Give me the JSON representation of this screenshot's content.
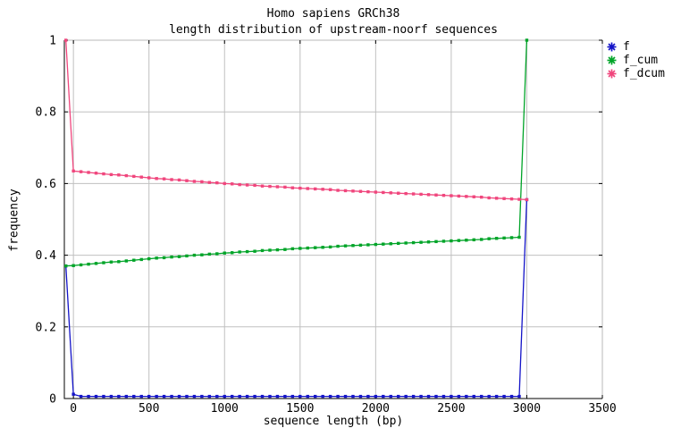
{
  "figure": {
    "title_line1": "Homo sapiens GRCh38",
    "title_line2": "length distribution of upstream-noorf sequences",
    "xlabel": "sequence length (bp)",
    "ylabel": "frequency"
  },
  "colors": {
    "background": "#ffffff",
    "grid": "#c0c0c0",
    "border_top_right": "#b8b8b8",
    "axis": "#000000",
    "text": "#000000"
  },
  "chart_data": {
    "type": "line",
    "title": "Homo sapiens GRCh38 — length distribution of upstream-noorf sequences",
    "xlabel": "sequence length (bp)",
    "ylabel": "frequency",
    "xlim": [
      -60,
      3500
    ],
    "ylim": [
      0,
      1
    ],
    "x_ticks": [
      0,
      500,
      1000,
      1500,
      2000,
      2500,
      3000,
      3500
    ],
    "x_tick_labels": [
      "0",
      "500",
      "1000",
      "1500",
      "2000",
      "2500",
      "3000",
      "3500"
    ],
    "y_ticks": [
      0,
      0.2,
      0.4,
      0.6,
      0.8,
      1
    ],
    "y_tick_labels": [
      "0",
      "0.2",
      "0.4",
      "0.6",
      "0.8",
      "1"
    ],
    "grid": true,
    "legend_position": "outside-top-right",
    "marker": "square-dot",
    "x": [
      -50,
      0,
      50,
      100,
      150,
      200,
      250,
      300,
      350,
      400,
      450,
      500,
      550,
      600,
      650,
      700,
      750,
      800,
      850,
      900,
      950,
      1000,
      1050,
      1100,
      1150,
      1200,
      1250,
      1300,
      1350,
      1400,
      1450,
      1500,
      1550,
      1600,
      1650,
      1700,
      1750,
      1800,
      1850,
      1900,
      1950,
      2000,
      2050,
      2100,
      2150,
      2200,
      2250,
      2300,
      2350,
      2400,
      2450,
      2500,
      2550,
      2600,
      2650,
      2700,
      2750,
      2800,
      2850,
      2900,
      2950,
      3000
    ],
    "series": [
      {
        "name": "f",
        "color": "#1414c8",
        "values": [
          0.37,
          0.012,
          0.006,
          0.006,
          0.006,
          0.006,
          0.006,
          0.006,
          0.006,
          0.006,
          0.006,
          0.006,
          0.006,
          0.006,
          0.006,
          0.006,
          0.006,
          0.006,
          0.006,
          0.006,
          0.006,
          0.006,
          0.006,
          0.006,
          0.006,
          0.006,
          0.006,
          0.006,
          0.006,
          0.006,
          0.006,
          0.006,
          0.006,
          0.006,
          0.006,
          0.006,
          0.006,
          0.006,
          0.006,
          0.006,
          0.006,
          0.006,
          0.006,
          0.006,
          0.006,
          0.006,
          0.006,
          0.006,
          0.006,
          0.006,
          0.006,
          0.006,
          0.006,
          0.006,
          0.006,
          0.006,
          0.006,
          0.006,
          0.006,
          0.006,
          0.006,
          0.555
        ]
      },
      {
        "name": "f_cum",
        "color": "#00a428",
        "values": [
          0.37,
          0.371,
          0.373,
          0.375,
          0.377,
          0.379,
          0.381,
          0.382,
          0.384,
          0.386,
          0.388,
          0.39,
          0.392,
          0.393,
          0.395,
          0.396,
          0.398,
          0.4,
          0.401,
          0.403,
          0.404,
          0.406,
          0.407,
          0.409,
          0.41,
          0.411,
          0.413,
          0.414,
          0.415,
          0.416,
          0.418,
          0.419,
          0.42,
          0.421,
          0.422,
          0.423,
          0.425,
          0.426,
          0.427,
          0.428,
          0.429,
          0.43,
          0.431,
          0.432,
          0.433,
          0.434,
          0.435,
          0.436,
          0.437,
          0.438,
          0.439,
          0.44,
          0.441,
          0.442,
          0.443,
          0.444,
          0.446,
          0.447,
          0.448,
          0.449,
          0.45,
          1.0
        ]
      },
      {
        "name": "f_dcum",
        "color": "#f0467d",
        "values": [
          1.0,
          0.635,
          0.633,
          0.631,
          0.629,
          0.627,
          0.625,
          0.624,
          0.622,
          0.62,
          0.618,
          0.616,
          0.614,
          0.613,
          0.611,
          0.61,
          0.608,
          0.606,
          0.605,
          0.603,
          0.602,
          0.6,
          0.599,
          0.597,
          0.596,
          0.595,
          0.593,
          0.592,
          0.591,
          0.59,
          0.588,
          0.587,
          0.586,
          0.585,
          0.584,
          0.583,
          0.581,
          0.58,
          0.579,
          0.578,
          0.577,
          0.576,
          0.575,
          0.574,
          0.573,
          0.572,
          0.571,
          0.57,
          0.569,
          0.568,
          0.567,
          0.566,
          0.565,
          0.564,
          0.563,
          0.562,
          0.56,
          0.559,
          0.558,
          0.557,
          0.556,
          0.555
        ]
      }
    ]
  }
}
